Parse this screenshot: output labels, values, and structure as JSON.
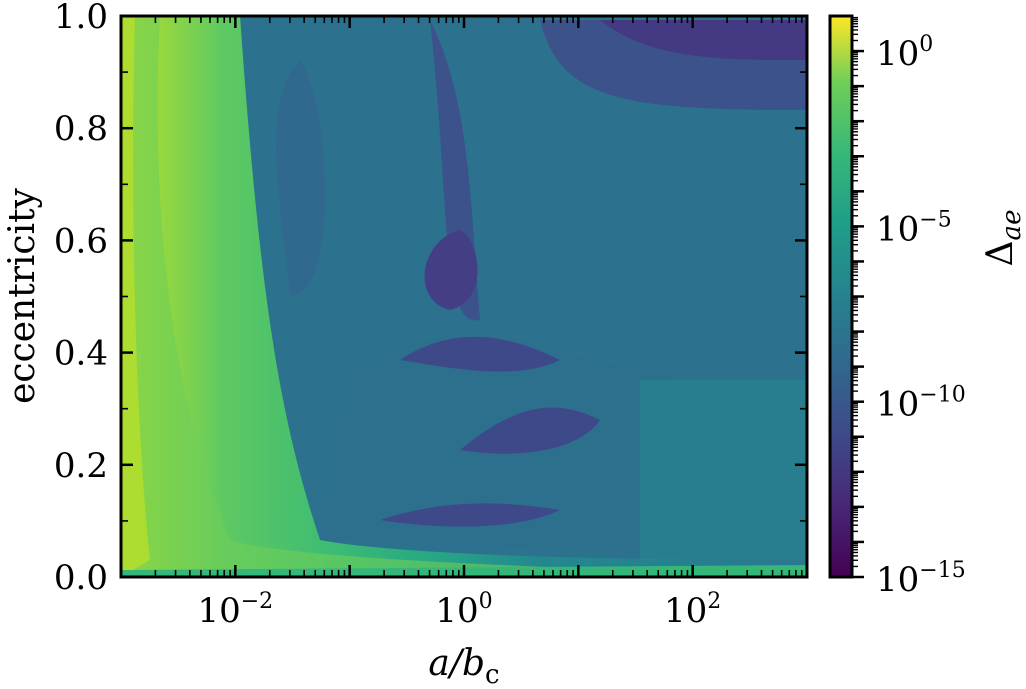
{
  "chart_data": {
    "type": "heatmap",
    "xlabel": "a/b",
    "xlabel_sub": "c",
    "ylabel": "eccentricity",
    "x_scale": "log",
    "xlim": [
      0.001,
      1000
    ],
    "ylim": [
      0.0,
      1.0
    ],
    "x_ticks": [
      {
        "value": 0.01,
        "base": "10",
        "exp": "−2"
      },
      {
        "value": 1,
        "base": "10",
        "exp": "0"
      },
      {
        "value": 100,
        "base": "10",
        "exp": "2"
      }
    ],
    "y_ticks": [
      {
        "value": 0.0,
        "label": "0.0"
      },
      {
        "value": 0.2,
        "label": "0.2"
      },
      {
        "value": 0.4,
        "label": "0.4"
      },
      {
        "value": 0.6,
        "label": "0.6"
      },
      {
        "value": 0.8,
        "label": "0.8"
      },
      {
        "value": 1.0,
        "label": "1.0"
      }
    ],
    "colorbar": {
      "label": "Δ",
      "label_sub": "ae",
      "scale": "log",
      "range": [
        1e-15,
        10.0
      ],
      "colormap": "viridis",
      "ticks": [
        {
          "value": 1,
          "base": "10",
          "exp": "0"
        },
        {
          "value": 1e-05,
          "base": "10",
          "exp": "−5"
        },
        {
          "value": 1e-10,
          "base": "10",
          "exp": "−10"
        },
        {
          "value": 1e-15,
          "base": "10",
          "exp": "−15"
        }
      ]
    },
    "grid": false
  }
}
